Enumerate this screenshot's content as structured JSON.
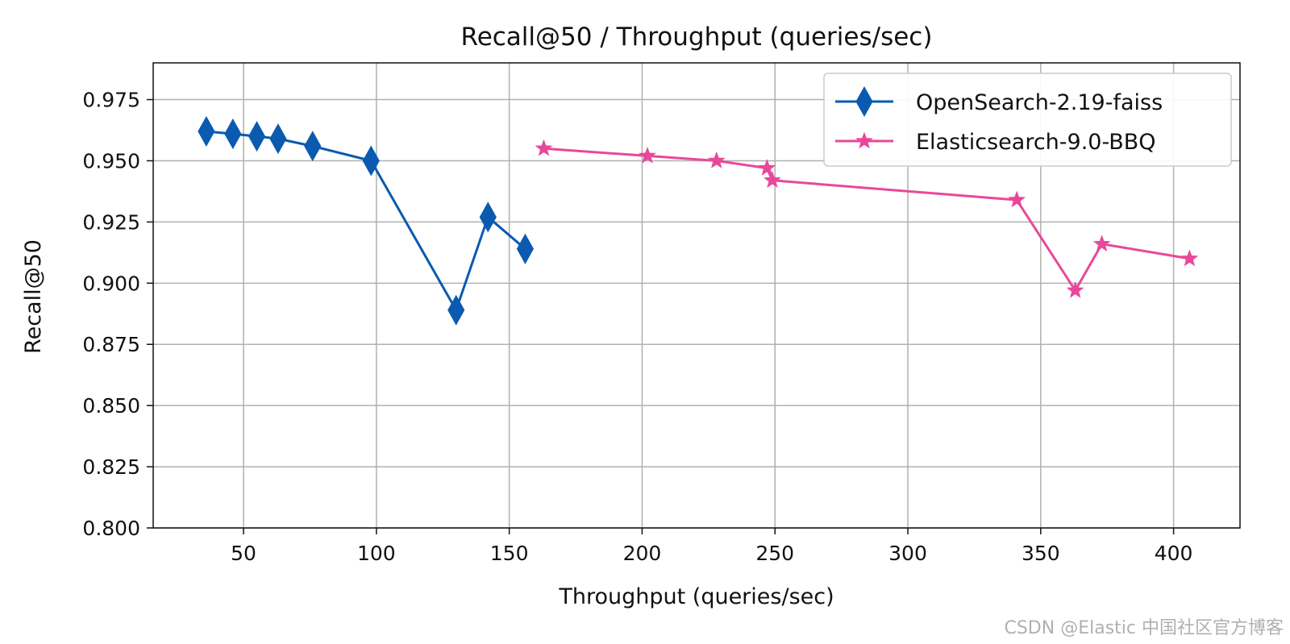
{
  "chart_data": {
    "type": "line",
    "title": "Recall@50 / Throughput (queries/sec)",
    "xlabel": "Throughput (queries/sec)",
    "ylabel": "Recall@50",
    "xlim": [
      16,
      425
    ],
    "ylim": [
      0.8,
      0.99
    ],
    "grid": true,
    "legend_position": "top-right",
    "xticks": [
      50,
      100,
      150,
      200,
      250,
      300,
      350,
      400
    ],
    "yticks": [
      0.8,
      0.825,
      0.85,
      0.875,
      0.9,
      0.925,
      0.95,
      0.975
    ],
    "ytick_labels": [
      "0.800",
      "0.825",
      "0.850",
      "0.875",
      "0.900",
      "0.925",
      "0.950",
      "0.975"
    ],
    "series": [
      {
        "name": "OpenSearch-2.19-faiss",
        "color": "#0a5ab0",
        "marker": "diamond",
        "x": [
          36,
          46,
          55,
          63,
          76,
          98,
          130,
          142,
          156
        ],
        "y": [
          0.962,
          0.961,
          0.96,
          0.959,
          0.956,
          0.95,
          0.889,
          0.927,
          0.914
        ]
      },
      {
        "name": "Elasticsearch-9.0-BBQ",
        "color": "#e8489a",
        "marker": "star",
        "x": [
          163,
          202,
          228,
          247,
          249,
          341,
          363,
          373,
          406
        ],
        "y": [
          0.955,
          0.952,
          0.95,
          0.947,
          0.942,
          0.934,
          0.897,
          0.916,
          0.91
        ]
      }
    ]
  },
  "watermark": "CSDN @Elastic 中国社区官方博客"
}
